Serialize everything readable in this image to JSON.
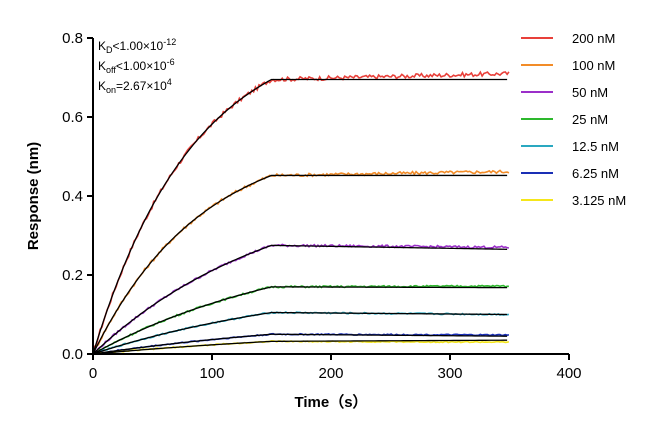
{
  "chart_data": {
    "type": "line",
    "xlabel": "Time（s）",
    "ylabel": "Response (nm)",
    "xlim": [
      0,
      400
    ],
    "ylim": [
      0,
      0.8
    ],
    "x_ticks": [
      "0",
      "100",
      "200",
      "300",
      "400"
    ],
    "y_ticks": [
      "0.0",
      "0.2",
      "0.4",
      "0.6",
      "0.8"
    ],
    "grid": false,
    "legend_position": "top-right",
    "annotations": [
      {
        "base": "K",
        "sub": "D",
        "text": "<1.00×10",
        "sup": "-12"
      },
      {
        "base": "K",
        "sub": "off",
        "text": "<1.00×10",
        "sup": "-6"
      },
      {
        "base": "K",
        "sub": "on",
        "text": "=2.67×10",
        "sup": "4"
      }
    ],
    "association_end_time": 150,
    "end_time": 350,
    "fit_color": "#000000",
    "series": [
      {
        "name": "200 nM",
        "color": "#e8403a",
        "plateau": 0.695,
        "end_value": 0.71,
        "fit_end_value": 0.695
      },
      {
        "name": "100 nM",
        "color": "#f28c28",
        "plateau": 0.452,
        "end_value": 0.462,
        "fit_end_value": 0.452
      },
      {
        "name": "50 nM",
        "color": "#9b2fc9",
        "plateau": 0.275,
        "end_value": 0.27,
        "fit_end_value": 0.265
      },
      {
        "name": "25 nM",
        "color": "#2db82d",
        "plateau": 0.17,
        "end_value": 0.172,
        "fit_end_value": 0.168
      },
      {
        "name": "12.5 nM",
        "color": "#2aa8c0",
        "plateau": 0.105,
        "end_value": 0.1,
        "fit_end_value": 0.1
      },
      {
        "name": "6.25 nM",
        "color": "#1a2fb5",
        "plateau": 0.05,
        "end_value": 0.048,
        "fit_end_value": 0.045
      },
      {
        "name": "3.125 nM",
        "color": "#f5e61a",
        "plateau": 0.032,
        "end_value": 0.03,
        "fit_end_value": 0.035
      }
    ]
  }
}
